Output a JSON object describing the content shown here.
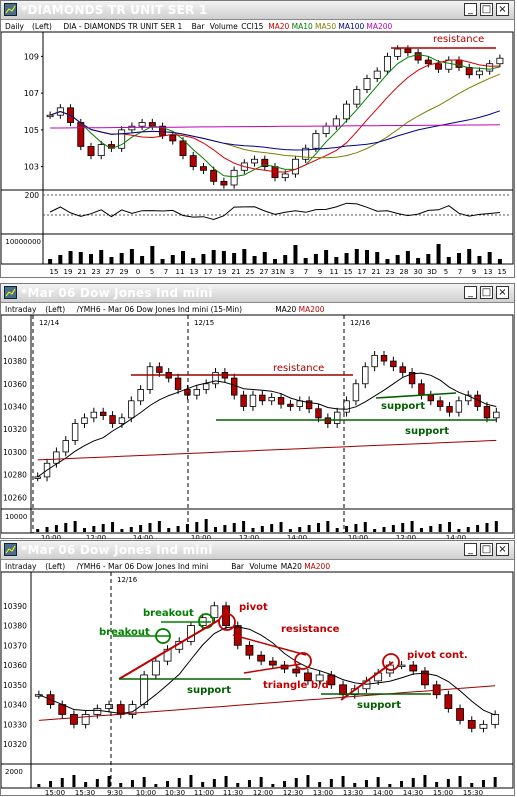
{
  "windows": [
    {
      "title": "*DIAMONDS TR UNIT SER 1",
      "header": {
        "period": "Daily",
        "axis": "(Left)",
        "symbol": "DIA - DIAMONDS TR UNIT SER 1",
        "bar": "Bar",
        "vol": "Volume",
        "ind": "CCI15",
        "ma": [
          {
            "label": "MA20",
            "color": "#d00000"
          },
          {
            "label": "MA10",
            "color": "#008000"
          },
          {
            "label": "MA50",
            "color": "#808000"
          },
          {
            "label": "MA100",
            "color": "#000090"
          },
          {
            "label": "MA200",
            "color": "#c000c0"
          }
        ]
      },
      "price_ticks": [
        "109",
        "107",
        "105",
        "103"
      ],
      "osc_tick": "200",
      "vol_tick": "10000000",
      "x_ticks": [
        "15",
        "19",
        "21",
        "23",
        "27",
        "29",
        "0",
        "5",
        "7",
        "11",
        "13",
        "17",
        "19",
        "21",
        "25",
        "27",
        "31N",
        "3",
        "7",
        "9",
        "11",
        "15",
        "17",
        "21",
        "23",
        "28",
        "30",
        "3D",
        "5",
        "7",
        "9",
        "13",
        "15"
      ],
      "annotations": [
        {
          "text": "resistance",
          "color": "#b00000"
        }
      ]
    },
    {
      "title": "*Mar 06  Dow Jones Ind mini",
      "header": {
        "period": "Intraday",
        "axis": "(Left)",
        "symbol": "/YMH6 - Mar 06  Dow Jones Ind mini  (15-Min)",
        "ma": [
          {
            "label": "MA20",
            "color": "#000000"
          },
          {
            "label": "MA200",
            "color": "#c00000"
          }
        ]
      },
      "date_labels": [
        "12/14",
        "12/15",
        "12/16"
      ],
      "price_ticks": [
        "10400",
        "10380",
        "10360",
        "10340",
        "10320",
        "10300",
        "10280",
        "10260"
      ],
      "vol_tick": "10000",
      "x_ticks": [
        "10:00",
        "12:00",
        "14:00",
        "10:00",
        "12:00",
        "14:00",
        "10:00",
        "12:00",
        "14:00"
      ],
      "annotations": [
        {
          "text": "resistance",
          "color": "#b00000"
        },
        {
          "text": "support",
          "color": "#006000"
        },
        {
          "text": "support",
          "color": "#006000"
        }
      ]
    },
    {
      "title": "*Mar 06  Dow Jones Ind mini",
      "header": {
        "period": "Intraday",
        "axis": "(Left)",
        "symbol": "/YMH6 - Mar 06  Dow Jones Ind mini",
        "bar": "Bar",
        "vol": "Volume",
        "ma": [
          {
            "label": "MA20",
            "color": "#000000"
          },
          {
            "label": "MA200",
            "color": "#c00000"
          }
        ]
      },
      "date_labels": [
        "12/16"
      ],
      "price_ticks": [
        "10390",
        "10380",
        "10370",
        "10360",
        "10350",
        "10340",
        "10330",
        "10320"
      ],
      "vol_tick": "2000",
      "x_ticks": [
        "15:00",
        "15:30",
        "9:30",
        "10:00",
        "10:30",
        "11:00",
        "11:30",
        "12:00",
        "12:30",
        "13:00",
        "13:30",
        "14:00",
        "14:30",
        "15:00",
        "15:30"
      ],
      "annotations": [
        {
          "text": "breakout",
          "color": "#008000"
        },
        {
          "text": "breakout",
          "color": "#008000"
        },
        {
          "text": "pivot",
          "color": "#c00000"
        },
        {
          "text": "resistance",
          "color": "#c00000"
        },
        {
          "text": "triangle b/d",
          "color": "#c00000"
        },
        {
          "text": "pivot cont.",
          "color": "#c00000"
        },
        {
          "text": "support",
          "color": "#006000"
        },
        {
          "text": "support",
          "color": "#006000"
        }
      ]
    }
  ],
  "chart_data": [
    {
      "type": "bar",
      "title": "DIA - DIAMONDS TR UNIT SER 1",
      "ylim": [
        102,
        110
      ],
      "series": [
        {
          "name": "DIA",
          "values": [
            105.8,
            106.2,
            105.4,
            104.1,
            103.6,
            104.2,
            104.0,
            105.0,
            105.2,
            105.4,
            105.2,
            104.7,
            104.4,
            103.6,
            103.0,
            102.8,
            102.2,
            102.0,
            102.8,
            103.2,
            103.4,
            103.0,
            102.4,
            102.6,
            103.4,
            104.0,
            104.8,
            105.2,
            105.6,
            106.4,
            107.2,
            107.8,
            108.2,
            109.0,
            109.4,
            109.2,
            108.8,
            108.6,
            108.3,
            108.8,
            108.4,
            108.0,
            108.2,
            108.6,
            108.9
          ]
        }
      ]
    },
    {
      "type": "line",
      "title": "/YMH6 - Mar 06  Dow Jones Ind mini  (15-Min)",
      "ylim": [
        10255,
        10410
      ],
      "series": [
        {
          "name": "/YMH6",
          "values": [
            10278,
            10290,
            10300,
            10310,
            10325,
            10330,
            10335,
            10332,
            10325,
            10330,
            10345,
            10355,
            10375,
            10370,
            10365,
            10355,
            10350,
            10355,
            10360,
            10370,
            10365,
            10350,
            10340,
            10350,
            10345,
            10348,
            10342,
            10340,
            10345,
            10338,
            10330,
            10325,
            10335,
            10345,
            10360,
            10375,
            10385,
            10380,
            10375,
            10370,
            10360,
            10350,
            10345,
            10340,
            10335,
            10345,
            10350,
            10340,
            10330,
            10335
          ]
        }
      ]
    },
    {
      "type": "line",
      "title": "/YMH6 - Mar 06  Dow Jones Ind mini",
      "ylim": [
        10316,
        10398
      ],
      "series": [
        {
          "name": "/YMH6",
          "values": [
            10345,
            10340,
            10335,
            10330,
            10335,
            10338,
            10340,
            10335,
            10340,
            10355,
            10362,
            10368,
            10372,
            10380,
            10384,
            10390,
            10380,
            10370,
            10365,
            10362,
            10360,
            10358,
            10356,
            10352,
            10355,
            10350,
            10345,
            10348,
            10352,
            10356,
            10360,
            10360,
            10357,
            10350,
            10345,
            10338,
            10332,
            10328,
            10330,
            10335
          ]
        }
      ]
    }
  ]
}
